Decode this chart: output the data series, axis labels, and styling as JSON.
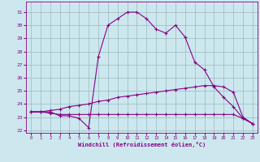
{
  "xlabel": "Windchill (Refroidissement éolien,°C)",
  "hours": [
    0,
    1,
    2,
    3,
    4,
    5,
    6,
    7,
    8,
    9,
    10,
    11,
    12,
    13,
    14,
    15,
    16,
    17,
    18,
    19,
    20,
    21,
    22,
    23
  ],
  "line1": [
    23.4,
    23.4,
    23.4,
    23.1,
    23.1,
    22.9,
    22.2,
    27.6,
    30.0,
    30.5,
    31.0,
    31.0,
    30.5,
    29.7,
    29.4,
    30.0,
    29.1,
    27.2,
    26.6,
    25.3,
    24.5,
    23.8,
    22.9,
    22.5
  ],
  "line2": [
    23.4,
    23.4,
    23.5,
    23.6,
    23.8,
    23.9,
    24.0,
    24.2,
    24.3,
    24.5,
    24.6,
    24.7,
    24.8,
    24.9,
    25.0,
    25.1,
    25.2,
    25.3,
    25.4,
    25.4,
    25.3,
    24.9,
    23.0,
    22.5
  ],
  "line3": [
    23.4,
    23.4,
    23.3,
    23.2,
    23.2,
    23.2,
    23.2,
    23.2,
    23.2,
    23.2,
    23.2,
    23.2,
    23.2,
    23.2,
    23.2,
    23.2,
    23.2,
    23.2,
    23.2,
    23.2,
    23.2,
    23.2,
    22.9,
    22.5
  ],
  "line_color": "#880088",
  "bg_color": "#cce8ee",
  "grid_color": "#99b8c0",
  "yticks": [
    22,
    23,
    24,
    25,
    26,
    27,
    28,
    29,
    30,
    31
  ],
  "xticks": [
    0,
    1,
    2,
    3,
    4,
    5,
    6,
    7,
    8,
    9,
    10,
    11,
    12,
    13,
    14,
    15,
    16,
    17,
    18,
    19,
    20,
    21,
    22,
    23
  ]
}
